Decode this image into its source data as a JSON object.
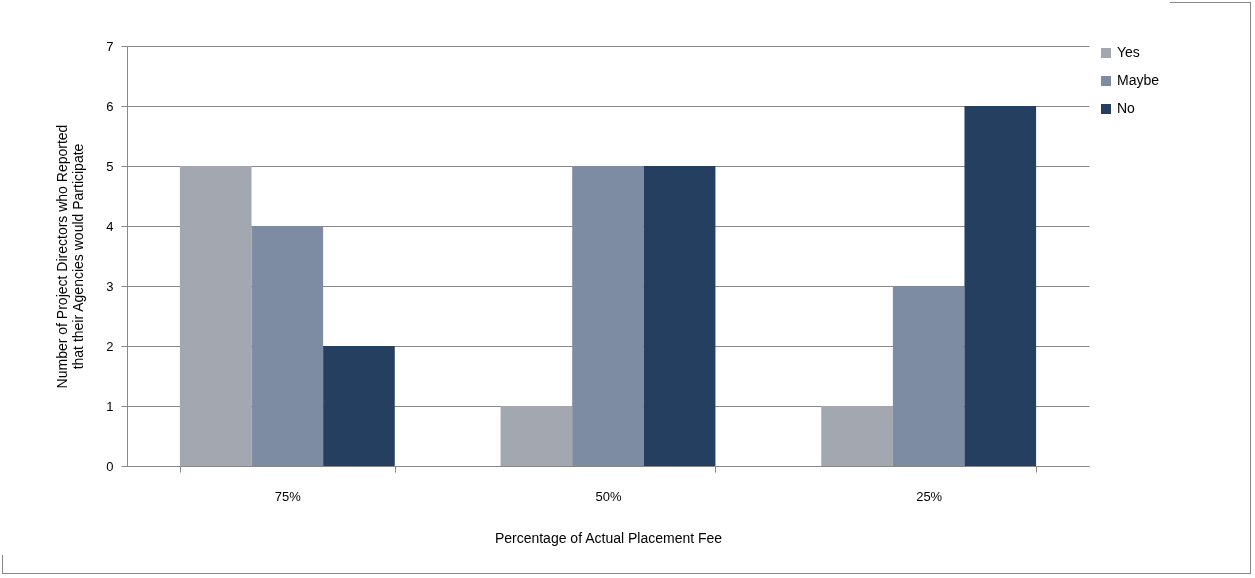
{
  "chart_data": {
    "type": "bar",
    "xlabel": "Percentage of Actual Placement Fee",
    "ylabel": "Number of Project Directors who Reported that their Agencies would Participate",
    "categories": [
      "75%",
      "50%",
      "25%"
    ],
    "series": [
      {
        "name": "Yes",
        "color": "#a3a8b0",
        "values": [
          5,
          1,
          1
        ]
      },
      {
        "name": "Maybe",
        "color": "#7d8ca3",
        "values": [
          4,
          5,
          3
        ]
      },
      {
        "name": "No",
        "color": "#243f60",
        "values": [
          2,
          5,
          6
        ]
      }
    ],
    "ylim": [
      0,
      7
    ],
    "yticks": [
      0,
      1,
      2,
      3,
      4,
      5,
      6,
      7
    ],
    "grid": "y",
    "legend": "right"
  }
}
